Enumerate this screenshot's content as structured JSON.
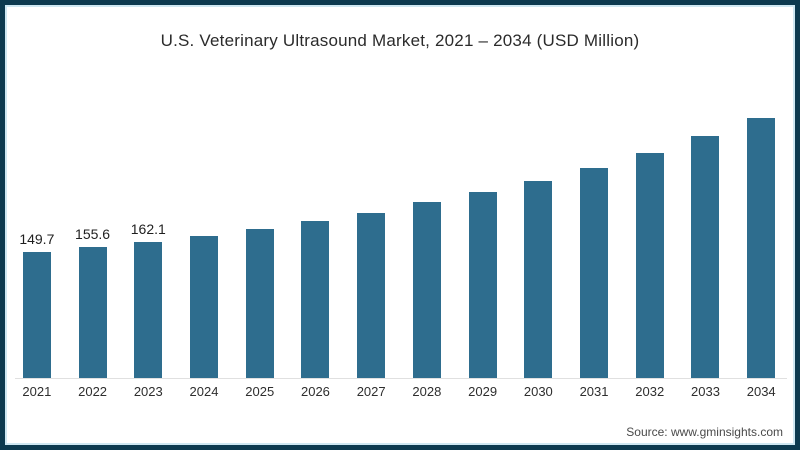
{
  "frame": {
    "border_color": "#0d3a4f",
    "inner_line_color": "#cfe8f2",
    "background": "#ffffff"
  },
  "chart_data": {
    "type": "bar",
    "title": "U.S. Veterinary Ultrasound Market, 2021 – 2034 (USD Million)",
    "categories": [
      "2021",
      "2022",
      "2023",
      "2024",
      "2025",
      "2026",
      "2027",
      "2028",
      "2029",
      "2030",
      "2031",
      "2032",
      "2033",
      "2034"
    ],
    "values": [
      149.7,
      155.6,
      162.1,
      169.0,
      177.0,
      187.0,
      197.0,
      209.0,
      221.0,
      234.0,
      250.0,
      268.0,
      288.0,
      309.0
    ],
    "data_labels": [
      "149.7",
      "155.6",
      "162.1",
      "",
      "",
      "",
      "",
      "",
      "",
      "",
      "",
      "",
      "",
      ""
    ],
    "bar_color": "#2e6d8e",
    "xlabel": "",
    "ylabel": "",
    "ylim": [
      0,
      320
    ],
    "grid": false,
    "legend": false,
    "axis_line_color": "#e0e0e0"
  },
  "source": {
    "label": "Source: www.gminsights.com"
  }
}
